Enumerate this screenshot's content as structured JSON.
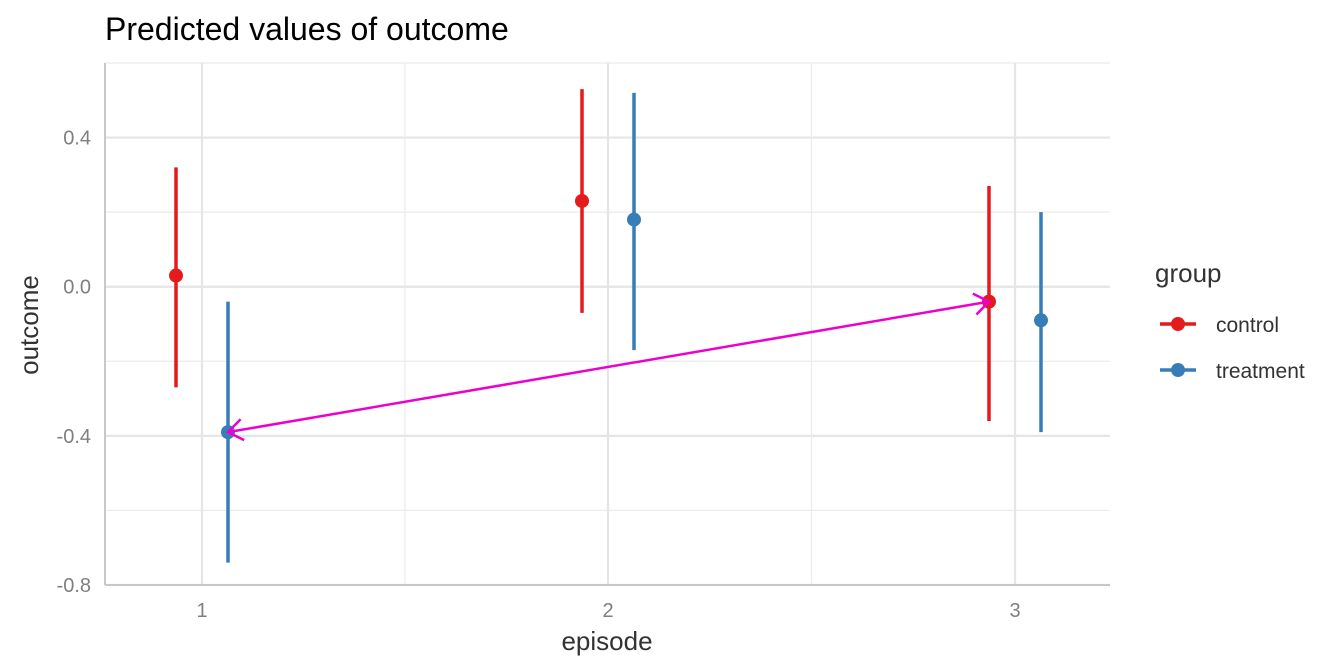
{
  "chart_data": {
    "type": "scatter",
    "title": "Predicted values of outcome",
    "xlabel": "episode",
    "ylabel": "outcome",
    "categories": [
      "1",
      "2",
      "3"
    ],
    "ylim": [
      -0.8,
      0.6
    ],
    "yticks": [
      {
        "value": -0.8,
        "label": "-0.8"
      },
      {
        "value": -0.4,
        "label": "-0.4"
      },
      {
        "value": 0.0,
        "label": "0.0"
      },
      {
        "value": 0.4,
        "label": "0.4"
      }
    ],
    "grid": true,
    "legend": {
      "title": "group",
      "placement": "right"
    },
    "series": [
      {
        "name": "control",
        "color": "#e41a1c",
        "points": [
          {
            "x": "1",
            "y": 0.03,
            "lower": -0.27,
            "upper": 0.32
          },
          {
            "x": "2",
            "y": 0.23,
            "lower": -0.07,
            "upper": 0.53
          },
          {
            "x": "3",
            "y": -0.04,
            "lower": -0.36,
            "upper": 0.27
          }
        ]
      },
      {
        "name": "treatment",
        "color": "#377eb8",
        "points": [
          {
            "x": "1",
            "y": -0.39,
            "lower": -0.74,
            "upper": -0.04
          },
          {
            "x": "2",
            "y": 0.18,
            "lower": -0.17,
            "upper": 0.52
          },
          {
            "x": "3",
            "y": -0.09,
            "lower": -0.39,
            "upper": 0.2
          }
        ]
      }
    ],
    "annotation": {
      "type": "double-arrow",
      "color": "#ee00cc",
      "from": {
        "series": "treatment",
        "x": "1",
        "y": -0.39
      },
      "to": {
        "series": "control",
        "x": "3",
        "y": -0.04
      }
    }
  }
}
